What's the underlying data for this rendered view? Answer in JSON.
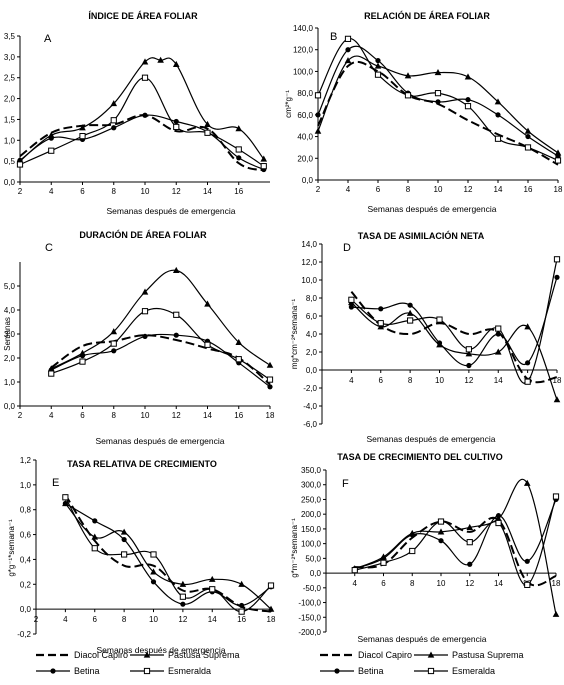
{
  "chart_data": [
    {
      "type": "line",
      "panel_letter": "A",
      "title": "ÍNDICE DE ÁREA FOLIAR",
      "xlabel": "Semanas después de emergencia",
      "ylabel": "",
      "xlim": [
        2,
        18
      ],
      "ylim": [
        0,
        3.5
      ],
      "xticks": [
        "2",
        "4",
        "6",
        "8",
        "10",
        "12",
        "14",
        "16"
      ],
      "yticks": [
        "0,0",
        "0,5",
        "1,0",
        "1,5",
        "2,0",
        "2,5",
        "3,0",
        "3,5"
      ],
      "series": [
        {
          "name": "Diacol Capiro",
          "x": [
            2,
            4,
            6,
            8,
            10,
            12,
            14,
            16,
            17.6
          ],
          "y": [
            0.62,
            1.18,
            1.35,
            1.38,
            1.6,
            1.22,
            1.28,
            0.45,
            0.28
          ]
        },
        {
          "name": "Pastusa Suprema",
          "x": [
            2,
            4,
            6,
            8,
            10,
            11,
            12,
            14,
            16,
            17.6
          ],
          "y": [
            0.5,
            1.12,
            1.3,
            1.88,
            2.88,
            2.92,
            2.82,
            1.38,
            1.28,
            0.55
          ]
        },
        {
          "name": "Betina",
          "x": [
            2,
            4,
            6,
            8,
            10,
            12,
            14,
            16,
            17.6
          ],
          "y": [
            0.52,
            1.05,
            1.02,
            1.3,
            1.6,
            1.45,
            1.2,
            0.58,
            0.3
          ]
        },
        {
          "name": "Esmeralda",
          "x": [
            2,
            4,
            6,
            8,
            10,
            12,
            14,
            16,
            17.6
          ],
          "y": [
            0.42,
            0.75,
            1.1,
            1.48,
            2.5,
            1.32,
            1.18,
            0.78,
            0.38
          ]
        }
      ]
    },
    {
      "type": "line",
      "panel_letter": "B",
      "title": "RELACIÓN DE ÁREA FOLIAR",
      "xlabel": "Semanas después de emergencia",
      "ylabel": "cm²*g⁻¹",
      "xlim": [
        2,
        18
      ],
      "ylim": [
        0,
        140
      ],
      "xticks": [
        "2",
        "4",
        "6",
        "8",
        "10",
        "12",
        "14",
        "16",
        "18"
      ],
      "yticks": [
        "0,0",
        "20,0",
        "40,0",
        "60,0",
        "80,0",
        "100,0",
        "120,0",
        "140,0"
      ],
      "series": [
        {
          "name": "Diacol Capiro",
          "x": [
            2,
            4,
            6,
            8,
            10,
            12,
            14,
            16,
            18
          ],
          "y": [
            50,
            105,
            100,
            78,
            70,
            55,
            42,
            30,
            14
          ]
        },
        {
          "name": "Pastusa Suprema",
          "x": [
            2,
            4,
            6,
            8,
            10,
            12,
            14,
            16,
            18
          ],
          "y": [
            45,
            110,
            105,
            96,
            99,
            95,
            72,
            45,
            25
          ]
        },
        {
          "name": "Betina",
          "x": [
            2,
            4,
            6,
            8,
            10,
            12,
            14,
            16,
            18
          ],
          "y": [
            60,
            120,
            110,
            80,
            72,
            74,
            60,
            40,
            22
          ]
        },
        {
          "name": "Esmeralda",
          "x": [
            2,
            4,
            6,
            8,
            10,
            12,
            14,
            16,
            18
          ],
          "y": [
            78,
            130,
            97,
            78,
            80,
            68,
            38,
            30,
            18
          ]
        }
      ]
    },
    {
      "type": "line",
      "panel_letter": "C",
      "title": "DURACIÓN DE ÁREA FOLIAR",
      "xlabel": "Semanas después de emergencia",
      "ylabel": "Semanas",
      "xlim": [
        2,
        18
      ],
      "ylim": [
        0,
        6
      ],
      "xticks": [
        "2",
        "4",
        "6",
        "8",
        "10",
        "12",
        "14",
        "16",
        "18"
      ],
      "yticks": [
        "0,0",
        "1,0",
        "2,0",
        "3,0",
        "4,0",
        "5,0"
      ],
      "series": [
        {
          "name": "Diacol Capiro",
          "x": [
            4,
            6,
            8,
            10,
            12,
            14,
            16,
            18
          ],
          "y": [
            1.6,
            2.5,
            2.7,
            2.95,
            2.75,
            2.4,
            2.0,
            0.9
          ]
        },
        {
          "name": "Pastusa Suprema",
          "x": [
            4,
            6,
            8,
            10,
            12,
            14,
            16,
            18
          ],
          "y": [
            1.55,
            2.2,
            3.1,
            4.75,
            5.65,
            4.25,
            2.65,
            1.7
          ]
        },
        {
          "name": "Betina",
          "x": [
            4,
            6,
            8,
            10,
            12,
            14,
            16,
            18
          ],
          "y": [
            1.5,
            2.1,
            2.3,
            2.9,
            2.95,
            2.7,
            1.8,
            0.8
          ]
        },
        {
          "name": "Esmeralda",
          "x": [
            4,
            6,
            8,
            10,
            12,
            14,
            16,
            18
          ],
          "y": [
            1.35,
            1.85,
            2.6,
            3.95,
            3.8,
            2.55,
            1.95,
            1.1
          ]
        }
      ]
    },
    {
      "type": "line",
      "panel_letter": "D",
      "title": "TASA DE ASIMILACIÓN NETA",
      "xlabel": "Semanas después de emergencia",
      "ylabel": "mg*cm⁻²*semana⁻¹",
      "xlim": [
        2,
        18
      ],
      "ylim": [
        -6,
        14
      ],
      "xticks": [
        "4",
        "6",
        "8",
        "10",
        "12",
        "14",
        "16",
        "18"
      ],
      "yticks": [
        "-6,0",
        "-4,0",
        "-2,0",
        "0,0",
        "2,0",
        "4,0",
        "6,0",
        "8,0",
        "10,0",
        "12,0",
        "14,0"
      ],
      "series": [
        {
          "name": "Diacol Capiro",
          "x": [
            4,
            6,
            8,
            10,
            12,
            14,
            16,
            18
          ],
          "y": [
            8.7,
            5.0,
            4.0,
            5.2,
            4.0,
            4.2,
            -1.0,
            -0.8
          ]
        },
        {
          "name": "Pastusa Suprema",
          "x": [
            4,
            6,
            8,
            10,
            12,
            14,
            16,
            18
          ],
          "y": [
            7.5,
            4.8,
            6.3,
            2.8,
            1.8,
            2.0,
            4.8,
            -3.3
          ]
        },
        {
          "name": "Betina",
          "x": [
            4,
            6,
            8,
            10,
            12,
            14,
            16,
            18
          ],
          "y": [
            7.0,
            6.8,
            7.2,
            3.0,
            0.5,
            4.0,
            0.8,
            10.3
          ]
        },
        {
          "name": "Esmeralda",
          "x": [
            4,
            6,
            8,
            10,
            12,
            14,
            16,
            18
          ],
          "y": [
            7.8,
            5.2,
            5.5,
            5.6,
            2.3,
            4.6,
            -1.3,
            12.3
          ]
        }
      ]
    },
    {
      "type": "line",
      "panel_letter": "E",
      "title": "TASA RELATIVA DE CRECIMIENTO",
      "xlabel": "Semanas después de emergencia",
      "ylabel": "g*g⁻¹*semana⁻¹",
      "xlim": [
        2,
        18
      ],
      "ylim": [
        -0.2,
        1.2
      ],
      "xticks": [
        "2",
        "4",
        "6",
        "8",
        "10",
        "12",
        "14",
        "16",
        "18"
      ],
      "yticks": [
        "-0,2",
        "0,0",
        "0,2",
        "0,4",
        "0,6",
        "0,8",
        "1,0",
        "1,2"
      ],
      "series": [
        {
          "name": "Diacol Capiro",
          "x": [
            4,
            6,
            8,
            10,
            12,
            14,
            16,
            18
          ],
          "y": [
            0.92,
            0.55,
            0.35,
            0.35,
            0.15,
            0.16,
            0.02,
            -0.02
          ]
        },
        {
          "name": "Pastusa Suprema",
          "x": [
            4,
            6,
            8,
            10,
            12,
            14,
            16,
            18
          ],
          "y": [
            0.85,
            0.58,
            0.62,
            0.3,
            0.2,
            0.24,
            0.2,
            0.0
          ]
        },
        {
          "name": "Betina",
          "x": [
            4,
            6,
            8,
            10,
            12,
            14,
            16,
            18
          ],
          "y": [
            0.85,
            0.71,
            0.56,
            0.22,
            0.04,
            0.14,
            0.03,
            0.18
          ]
        },
        {
          "name": "Esmeralda",
          "x": [
            4,
            6,
            8,
            10,
            12,
            14,
            16,
            18
          ],
          "y": [
            0.9,
            0.49,
            0.44,
            0.44,
            0.1,
            0.16,
            -0.02,
            0.19
          ]
        }
      ]
    },
    {
      "type": "line",
      "panel_letter": "F",
      "title": "TASA DE CRECIMIENTO DEL CULTIVO",
      "xlabel": "Semanas después de emergencia",
      "ylabel": "g*m⁻²*semana⁻¹",
      "xlim": [
        2,
        18
      ],
      "ylim": [
        -200,
        350
      ],
      "xticks": [
        "4",
        "6",
        "8",
        "10",
        "12",
        "14",
        "16",
        "18"
      ],
      "yticks": [
        "-200,0",
        "-150,0",
        "-100,0",
        "-50,0",
        "0,0",
        "50,0",
        "100,0",
        "150,0",
        "200,0",
        "250,0",
        "300,0",
        "350,0"
      ],
      "series": [
        {
          "name": "Diacol Capiro",
          "x": [
            4,
            6,
            8,
            10,
            12,
            14,
            16,
            18
          ],
          "y": [
            20,
            30,
            120,
            175,
            140,
            180,
            -30,
            -10
          ]
        },
        {
          "name": "Pastusa Suprema",
          "x": [
            4,
            6,
            8,
            10,
            12,
            14,
            16,
            18
          ],
          "y": [
            15,
            55,
            135,
            140,
            155,
            185,
            305,
            -140
          ]
        },
        {
          "name": "Betina",
          "x": [
            4,
            6,
            8,
            10,
            12,
            14,
            16,
            18
          ],
          "y": [
            15,
            50,
            130,
            110,
            30,
            195,
            40,
            250
          ]
        },
        {
          "name": "Esmeralda",
          "x": [
            4,
            6,
            8,
            10,
            12,
            14,
            16,
            18
          ],
          "y": [
            10,
            35,
            75,
            175,
            105,
            170,
            -40,
            260
          ]
        }
      ]
    }
  ],
  "legend": [
    {
      "name": "Diacol Capiro",
      "dash": "9,4",
      "marker": "none"
    },
    {
      "name": "Pastusa Suprema",
      "dash": "",
      "marker": "triangle"
    },
    {
      "name": "Betina",
      "dash": "",
      "marker": "circle"
    },
    {
      "name": "Esmeralda",
      "dash": "",
      "marker": "square"
    }
  ]
}
